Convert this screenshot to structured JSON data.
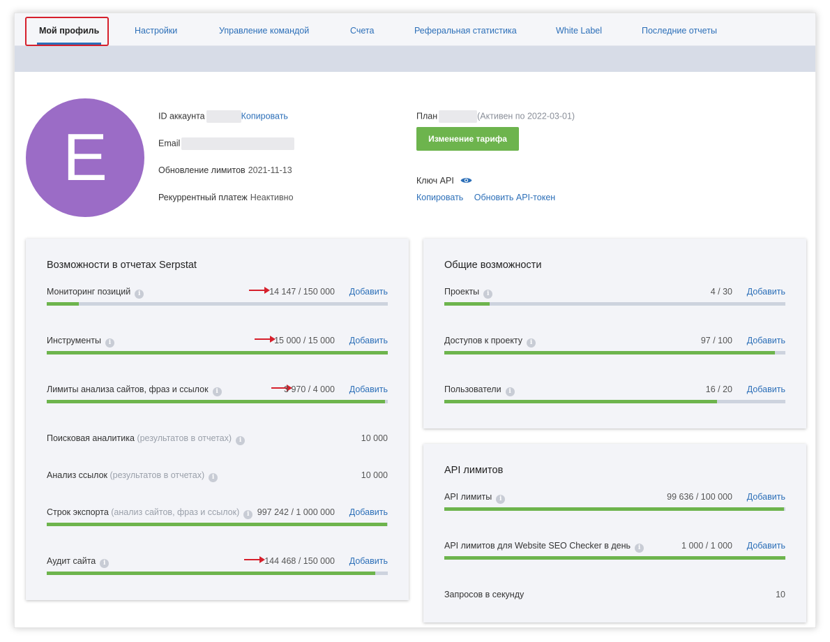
{
  "tabs": [
    {
      "label": "Мой профиль",
      "active": true
    },
    {
      "label": "Настройки"
    },
    {
      "label": "Управление командой"
    },
    {
      "label": "Счета"
    },
    {
      "label": "Реферальная статистика"
    },
    {
      "label": "White Label"
    },
    {
      "label": "Последние отчеты"
    }
  ],
  "profile": {
    "avatar_letter": "E",
    "account_id_label": "ID аккаунта",
    "copy_label": "Копировать",
    "email_label": "Email",
    "limits_update_label": "Обновление лимитов",
    "limits_update_value": "2021-11-13",
    "recurring_label": "Рекуррентный платеж",
    "recurring_value": "Неактивно",
    "plan_label": "План",
    "plan_status": "(Активен по 2022-03-01)",
    "change_plan_button": "Изменение тарифа",
    "api_key_label": "Ключ API",
    "api_copy": "Копировать",
    "api_refresh": "Обновить API-токен"
  },
  "reports_card": {
    "title": "Возможности в отчетах Serpstat",
    "rows": [
      {
        "name": "Мониторинг позиций",
        "count": "14 147 / 150 000",
        "add": "Добавить",
        "fill": 0.094
      },
      {
        "name": "Инструменты",
        "count": "15 000 / 15 000",
        "add": "Добавить",
        "fill": 1.0
      },
      {
        "name": "Лимиты анализа сайтов, фраз и ссылок",
        "count": "3 970 / 4 000",
        "add": "Добавить",
        "fill": 0.9925
      },
      {
        "name": "Поисковая аналитика",
        "sub": "(результатов в отчетах)",
        "count": "10 000"
      },
      {
        "name": "Анализ ссылок",
        "sub": "(результатов в отчетах)",
        "count": "10 000"
      },
      {
        "name": "Строк экспорта",
        "sub": "(анализ сайтов, фраз и ссылок)",
        "count": "997 242 / 1 000 000",
        "add": "Добавить",
        "fill": 0.997
      },
      {
        "name": "Аудит сайта",
        "count": "144 468 / 150 000",
        "add": "Добавить",
        "fill": 0.963
      }
    ]
  },
  "general_card": {
    "title": "Общие возможности",
    "rows": [
      {
        "name": "Проекты",
        "count": "4 / 30",
        "add": "Добавить",
        "fill": 0.133
      },
      {
        "name": "Доступов к проекту",
        "count": "97 / 100",
        "add": "Добавить",
        "fill": 0.97
      },
      {
        "name": "Пользователи",
        "count": "16 / 20",
        "add": "Добавить",
        "fill": 0.8
      }
    ]
  },
  "api_card": {
    "title": "API лимитов",
    "rows": [
      {
        "name": "API лимиты",
        "count": "99 636 / 100 000",
        "add": "Добавить",
        "fill": 0.9964
      },
      {
        "name": "API лимитов для Website SEO Checker в день",
        "count": "1 000 / 1 000",
        "add": "Добавить",
        "fill": 1.0
      },
      {
        "name": "Запросов в секунду",
        "count": "10"
      }
    ]
  },
  "colors": {
    "accent": "#2c6fb8",
    "green": "#6db44d",
    "avatar": "#9b6cc6",
    "highlight": "#d6202c"
  }
}
